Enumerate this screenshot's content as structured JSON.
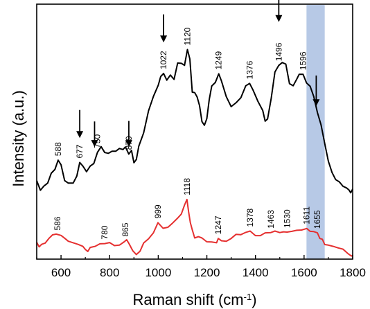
{
  "chart_data": {
    "type": "line",
    "xlabel": "Raman shift (cm",
    "xlabel_sup": "-1",
    "xlabel_close": ")",
    "ylabel": "Intensity (a.u.)",
    "xlim": [
      500,
      1800
    ],
    "ylim": [
      0,
      1
    ],
    "y_ticks_shown": false,
    "grid": false,
    "x_ticks": [
      600,
      800,
      1000,
      1200,
      1400,
      1600,
      1800
    ],
    "x_tick_labels": [
      "600",
      "800",
      "1000",
      "1200",
      "1400",
      "1600",
      "1800"
    ],
    "highlight_band": {
      "x0": 1610,
      "x1": 1685,
      "color": "#b7c9e6"
    },
    "series": [
      {
        "color": "#000000",
        "x": [
          500,
          515,
          530,
          545,
          560,
          575,
          588,
          600,
          615,
          630,
          650,
          665,
          677,
          690,
          705,
          720,
          735,
          750,
          765,
          780,
          795,
          810,
          825,
          840,
          855,
          865,
          879,
          890,
          900,
          910,
          920,
          940,
          960,
          980,
          1000,
          1010,
          1022,
          1035,
          1050,
          1065,
          1080,
          1095,
          1108,
          1120,
          1130,
          1140,
          1150,
          1160,
          1170,
          1180,
          1190,
          1200,
          1210,
          1220,
          1235,
          1249,
          1260,
          1280,
          1300,
          1320,
          1340,
          1360,
          1376,
          1390,
          1410,
          1430,
          1440,
          1450,
          1465,
          1480,
          1496,
          1510,
          1525,
          1540,
          1555,
          1570,
          1580,
          1596,
          1610,
          1625,
          1640,
          1655,
          1670,
          1685,
          1700,
          1715,
          1730,
          1745,
          1760,
          1775,
          1785,
          1792,
          1800
        ],
        "y": [
          0.308,
          0.27,
          0.287,
          0.298,
          0.337,
          0.352,
          0.388,
          0.37,
          0.308,
          0.298,
          0.298,
          0.326,
          0.379,
          0.365,
          0.343,
          0.365,
          0.375,
          0.419,
          0.441,
          0.418,
          0.415,
          0.423,
          0.423,
          0.434,
          0.43,
          0.44,
          0.412,
          0.426,
          0.378,
          0.391,
          0.443,
          0.495,
          0.582,
          0.638,
          0.682,
          0.716,
          0.728,
          0.702,
          0.722,
          0.705,
          0.769,
          0.768,
          0.76,
          0.822,
          0.785,
          0.655,
          0.653,
          0.636,
          0.602,
          0.539,
          0.525,
          0.551,
          0.626,
          0.679,
          0.693,
          0.727,
          0.699,
          0.637,
          0.598,
          0.613,
          0.633,
          0.68,
          0.689,
          0.663,
          0.619,
          0.583,
          0.541,
          0.55,
          0.632,
          0.734,
          0.76,
          0.771,
          0.765,
          0.688,
          0.68,
          0.706,
          0.725,
          0.725,
          0.691,
          0.678,
          0.637,
          0.575,
          0.526,
          0.453,
          0.384,
          0.34,
          0.312,
          0.303,
          0.286,
          0.279,
          0.271,
          0.26,
          0.275
        ]
      },
      {
        "color": "#e53030",
        "x": [
          500,
          510,
          520,
          535,
          550,
          565,
          580,
          600,
          615,
          630,
          650,
          670,
          690,
          700,
          710,
          720,
          740,
          760,
          780,
          800,
          820,
          840,
          860,
          870,
          880,
          895,
          910,
          925,
          940,
          960,
          980,
          999,
          1020,
          1040,
          1060,
          1080,
          1095,
          1108,
          1118,
          1125,
          1132,
          1140,
          1150,
          1165,
          1180,
          1200,
          1220,
          1240,
          1247,
          1260,
          1280,
          1300,
          1320,
          1340,
          1360,
          1378,
          1400,
          1420,
          1440,
          1463,
          1480,
          1500,
          1515,
          1530,
          1550,
          1570,
          1590,
          1611,
          1625,
          1640,
          1655,
          1665,
          1675,
          1685,
          1700,
          1720,
          1740,
          1760,
          1780,
          1795,
          1800
        ],
        "y": [
          0.066,
          0.048,
          0.058,
          0.063,
          0.081,
          0.095,
          0.098,
          0.093,
          0.082,
          0.07,
          0.064,
          0.058,
          0.05,
          0.038,
          0.03,
          0.046,
          0.05,
          0.06,
          0.061,
          0.065,
          0.053,
          0.055,
          0.068,
          0.076,
          0.06,
          0.033,
          0.018,
          0.031,
          0.063,
          0.08,
          0.103,
          0.143,
          0.121,
          0.125,
          0.142,
          0.161,
          0.177,
          0.212,
          0.234,
          0.186,
          0.143,
          0.115,
          0.083,
          0.088,
          0.083,
          0.068,
          0.067,
          0.064,
          0.081,
          0.072,
          0.07,
          0.081,
          0.097,
          0.096,
          0.105,
          0.11,
          0.092,
          0.092,
          0.103,
          0.104,
          0.11,
          0.104,
          0.107,
          0.106,
          0.109,
          0.113,
          0.114,
          0.12,
          0.109,
          0.108,
          0.103,
          0.081,
          0.078,
          0.057,
          0.055,
          0.05,
          0.044,
          0.039,
          0.022,
          0.012,
          0.015
        ]
      }
    ],
    "annotations_black": [
      {
        "x": 588,
        "text": "588"
      },
      {
        "x": 677,
        "text": "677"
      },
      {
        "x": 750,
        "text": "750"
      },
      {
        "x": 879,
        "text": "879"
      },
      {
        "x": 1022,
        "text": "1022"
      },
      {
        "x": 1120,
        "text": "1120"
      },
      {
        "x": 1249,
        "text": "1249"
      },
      {
        "x": 1376,
        "text": "1376"
      },
      {
        "x": 1496,
        "text": "1496"
      },
      {
        "x": 1596,
        "text": "1596"
      }
    ],
    "annotations_red": [
      {
        "x": 586,
        "text": "586"
      },
      {
        "x": 780,
        "text": "780"
      },
      {
        "x": 865,
        "text": "865"
      },
      {
        "x": 999,
        "text": "999"
      },
      {
        "x": 1118,
        "text": "1118"
      },
      {
        "x": 1247,
        "text": "1247"
      },
      {
        "x": 1378,
        "text": "1378"
      },
      {
        "x": 1463,
        "text": "1463"
      },
      {
        "x": 1530,
        "text": "1530"
      },
      {
        "x": 1611,
        "text": "1611"
      },
      {
        "x": 1655,
        "text": "1655"
      }
    ],
    "arrows": [
      {
        "x": 677,
        "y_top": 0.585,
        "y_tip": 0.475
      },
      {
        "x": 738,
        "y_top": 0.54,
        "y_tip": 0.44
      },
      {
        "x": 879,
        "y_top": 0.542,
        "y_tip": 0.44
      },
      {
        "x": 1022,
        "y_top": 0.96,
        "y_tip": 0.85
      },
      {
        "x": 1496,
        "y_top": 1.05,
        "y_tip": 0.93
      },
      {
        "x": 1650,
        "y_top": 0.72,
        "y_tip": 0.6
      }
    ]
  }
}
